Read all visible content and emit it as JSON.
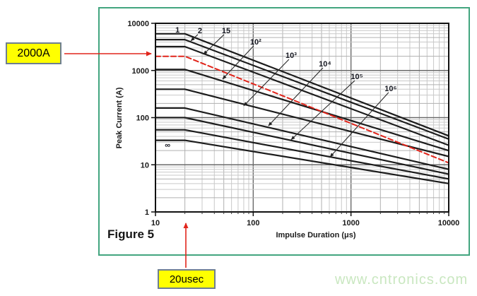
{
  "frame": {
    "border_color": "#42a57f"
  },
  "figure_label": "Figure 5",
  "watermark": {
    "text": "www.cntronics.com",
    "color": "#c9e7c0"
  },
  "annotations": {
    "highlight_color": "#ffff00",
    "box_border_color": "#6e7f90",
    "arrow_color": "#e1251b",
    "current_callout": "2000A",
    "duration_callout": "20usec"
  },
  "chart_data": {
    "type": "line",
    "title": "",
    "xlabel": "Impulse Duration (μs)",
    "ylabel": "Peak Current (A)",
    "xscale": "log",
    "yscale": "log",
    "xlim": [
      10,
      10000
    ],
    "ylim": [
      1,
      10000
    ],
    "x_ticks": [
      "10",
      "100",
      "1000",
      "10000"
    ],
    "y_ticks": [
      "1",
      "10",
      "100",
      "1000",
      "10000"
    ],
    "grid": {
      "major": true,
      "minor": true
    },
    "legend": "curve labels = number of impulses",
    "curve_color": "#1c1c1c",
    "series": [
      {
        "name": "impulses-1",
        "label": "1",
        "points": [
          [
            10,
            6000
          ],
          [
            20,
            6000
          ],
          [
            10000,
            41
          ]
        ],
        "label_at": [
          16.8,
          7300
        ],
        "arrow_to": null
      },
      {
        "name": "impulses-2",
        "label": "2",
        "points": [
          [
            10,
            4500
          ],
          [
            20,
            4500
          ],
          [
            10000,
            35
          ]
        ],
        "label_at": [
          28.5,
          7100
        ],
        "arrow_to": [
          23,
          4240
        ]
      },
      {
        "name": "impulses-15",
        "label": "15",
        "points": [
          [
            10,
            3200
          ],
          [
            20,
            3200
          ],
          [
            10000,
            26
          ]
        ],
        "label_at": [
          52.8,
          7100
        ],
        "arrow_to": [
          31,
          2190
        ]
      },
      {
        "name": "impulses-1e2",
        "label": "10²",
        "points": [
          [
            10,
            1050
          ],
          [
            20,
            1050
          ],
          [
            10000,
            20
          ]
        ],
        "label_at": [
          106,
          4070
        ],
        "arrow_to": [
          48.6,
          656
        ]
      },
      {
        "name": "impulses-1e3",
        "label": "10³",
        "points": [
          [
            10,
            400
          ],
          [
            20,
            400
          ],
          [
            10000,
            15
          ]
        ],
        "label_at": [
          244,
          2120
        ],
        "arrow_to": [
          80,
          178
        ]
      },
      {
        "name": "impulses-1e4",
        "label": "10⁴",
        "points": [
          [
            10,
            160
          ],
          [
            20,
            160
          ],
          [
            10000,
            8
          ]
        ],
        "label_at": [
          543,
          1400
        ],
        "arrow_to": [
          143,
          67
        ]
      },
      {
        "name": "impulses-1e5",
        "label": "10⁵",
        "points": [
          [
            10,
            100
          ],
          [
            20,
            100
          ],
          [
            10000,
            6.3
          ]
        ],
        "label_at": [
          1150,
          750
        ],
        "arrow_to": [
          244,
          34
        ]
      },
      {
        "name": "impulses-1e6",
        "label": "10⁶",
        "points": [
          [
            10,
            55
          ],
          [
            20,
            55
          ],
          [
            10000,
            5
          ]
        ],
        "label_at": [
          2550,
          420
        ],
        "arrow_to": [
          611,
          14.7
        ]
      },
      {
        "name": "impulses-infinite",
        "label": "∞",
        "points": [
          [
            10,
            33
          ],
          [
            20,
            33
          ],
          [
            10000,
            4
          ]
        ],
        "label_at": [
          13.3,
          26.5
        ],
        "arrow_to": null
      },
      {
        "name": "highlighted-rating-2000A",
        "label": null,
        "color": "#e1251b",
        "style": "dashed",
        "points": [
          [
            10,
            2000
          ],
          [
            20,
            2000
          ],
          [
            10000,
            11
          ]
        ]
      }
    ]
  }
}
